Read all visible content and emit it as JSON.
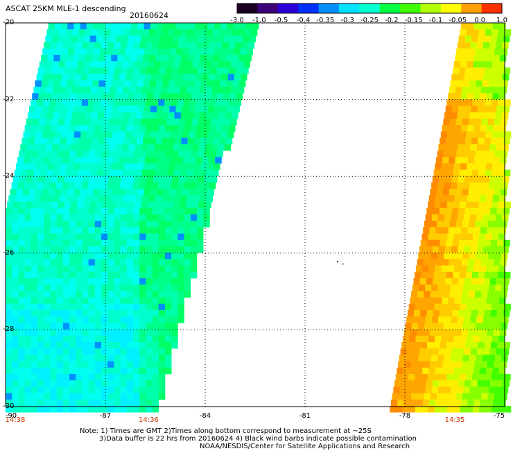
{
  "header": {
    "title": "ASCAT 25KM MLE-1 descending",
    "date": "20160624"
  },
  "colorbar": {
    "labels": [
      "-3.0",
      "-1.0",
      "-0.5",
      "-0.4",
      "-0.35",
      "-0.3",
      "-0.25",
      "-0.2",
      "-0.15",
      "-0.1",
      "-0.05",
      "0.0",
      "1.0"
    ],
    "colors": [
      "#1a0020",
      "#3c0078",
      "#2b00d8",
      "#0030ff",
      "#0090ff",
      "#00e0ff",
      "#00ffd0",
      "#00ff40",
      "#40ff00",
      "#b0ff00",
      "#ffff00",
      "#ffa000",
      "#ff3000"
    ]
  },
  "map": {
    "lat_labels": [
      "-20",
      "-22",
      "-24",
      "-26",
      "-28",
      "-30"
    ],
    "lon_labels": [
      "-90",
      "-87",
      "-84",
      "-81",
      "-78",
      "-75"
    ],
    "lat_range": [
      -30,
      -20
    ],
    "lon_range": [
      -90,
      -75
    ],
    "grid": true,
    "times": [
      {
        "label": "14:38",
        "lon": -90
      },
      {
        "label": "14:36",
        "lon": -85.7
      },
      {
        "label": "14:35",
        "lon": -76.5
      }
    ]
  },
  "notes": {
    "line1": "Note: 1) Times are GMT 2)Times along bottom correspond to measurement at ~25S",
    "line2": "3)Data buffer is 22 hrs from 20160624 4) Black wind barbs indicate possible contamination",
    "line3": "NOAA/NESDIS/Center for Satellite Applications and Research"
  }
}
